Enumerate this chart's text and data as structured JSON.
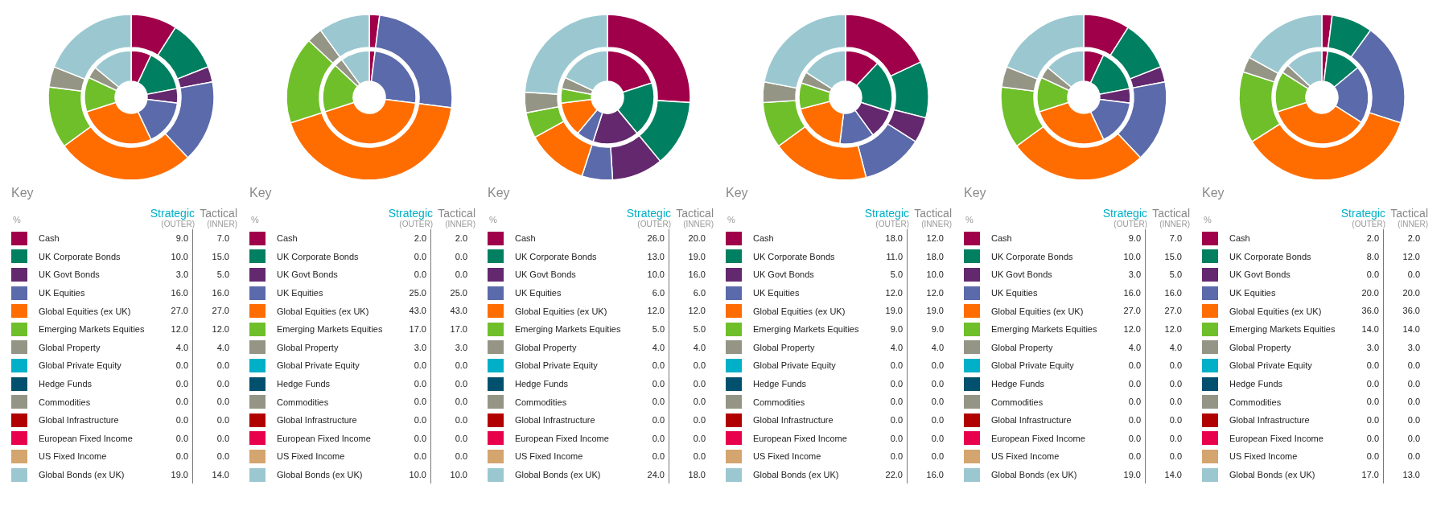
{
  "chart_data": [
    {
      "type": "donut",
      "legend": "bottom",
      "legend_title": "Key",
      "annotations": [
        "%",
        "(OUTER)",
        "(INNER)"
      ],
      "categories": [
        "Cash",
        "UK Corporate Bonds",
        "UK Govt Bonds",
        "UK Equities",
        "Global Equities (ex UK)",
        "Emerging Markets Equities",
        "Global Property",
        "Global Private Equity",
        "Hedge Funds",
        "Commodities",
        "Global Infrastructure",
        "European Fixed Income",
        "US Fixed Income",
        "Global Bonds (ex UK)"
      ],
      "colors": [
        "#a0004a",
        "#008060",
        "#63286e",
        "#5b6aaa",
        "#ff6d00",
        "#6fbf2a",
        "#949585",
        "#00b0c8",
        "#00506e",
        "#949585",
        "#b10000",
        "#e8004c",
        "#d4a56e",
        "#9bc8d0"
      ],
      "series": [
        {
          "name": "Strategic",
          "values": [
            9,
            10,
            3,
            16,
            27,
            12,
            4,
            0,
            0,
            0,
            0,
            0,
            0,
            19
          ],
          "value_labels": [
            "9.0",
            "10.0",
            "3.0",
            "16.0",
            "27.0",
            "12.0",
            "4.0",
            "0.0",
            "0.0",
            "0.0",
            "0.0",
            "0.0",
            "0.0",
            "19.0"
          ]
        },
        {
          "name": "Tactical",
          "values": [
            7,
            15,
            5,
            16,
            27,
            12,
            4,
            0,
            0,
            0,
            0,
            0,
            0,
            14
          ],
          "value_labels": [
            "7.0",
            "15.0",
            "5.0",
            "16.0",
            "27.0",
            "12.0",
            "4.0",
            "0.0",
            "0.0",
            "0.0",
            "0.0",
            "0.0",
            "0.0",
            "14.0"
          ]
        }
      ]
    },
    {
      "type": "donut",
      "legend": "bottom",
      "legend_title": "Key",
      "annotations": [
        "%",
        "(OUTER)",
        "(INNER)"
      ],
      "categories": [
        "Cash",
        "UK Corporate Bonds",
        "UK Govt Bonds",
        "UK Equities",
        "Global Equities (ex UK)",
        "Emerging Markets Equities",
        "Global Property",
        "Global Private Equity",
        "Hedge Funds",
        "Commodities",
        "Global Infrastructure",
        "European Fixed Income",
        "US Fixed Income",
        "Global Bonds (ex UK)"
      ],
      "colors": [
        "#a0004a",
        "#008060",
        "#63286e",
        "#5b6aaa",
        "#ff6d00",
        "#6fbf2a",
        "#949585",
        "#00b0c8",
        "#00506e",
        "#949585",
        "#b10000",
        "#e8004c",
        "#d4a56e",
        "#9bc8d0"
      ],
      "series": [
        {
          "name": "Strategic",
          "values": [
            2,
            0,
            0,
            25,
            43,
            17,
            3,
            0,
            0,
            0,
            0,
            0,
            0,
            10
          ],
          "value_labels": [
            "2.0",
            "0.0",
            "0.0",
            "25.0",
            "43.0",
            "17.0",
            "3.0",
            "0.0",
            "0.0",
            "0.0",
            "0.0",
            "0.0",
            "0.0",
            "10.0"
          ]
        },
        {
          "name": "Tactical",
          "values": [
            2,
            0,
            0,
            25,
            43,
            17,
            3,
            0,
            0,
            0,
            0,
            0,
            0,
            10
          ],
          "value_labels": [
            "2.0",
            "0.0",
            "0.0",
            "25.0",
            "43.0",
            "17.0",
            "3.0",
            "0.0",
            "0.0",
            "0.0",
            "0.0",
            "0.0",
            "0.0",
            "10.0"
          ]
        }
      ]
    },
    {
      "type": "donut",
      "legend": "bottom",
      "legend_title": "Key",
      "annotations": [
        "%",
        "(OUTER)",
        "(INNER)"
      ],
      "categories": [
        "Cash",
        "UK Corporate Bonds",
        "UK Govt Bonds",
        "UK Equities",
        "Global Equities (ex UK)",
        "Emerging Markets Equities",
        "Global Property",
        "Global Private Equity",
        "Hedge Funds",
        "Commodities",
        "Global Infrastructure",
        "European Fixed Income",
        "US Fixed Income",
        "Global Bonds (ex UK)"
      ],
      "colors": [
        "#a0004a",
        "#008060",
        "#63286e",
        "#5b6aaa",
        "#ff6d00",
        "#6fbf2a",
        "#949585",
        "#00b0c8",
        "#00506e",
        "#949585",
        "#b10000",
        "#e8004c",
        "#d4a56e",
        "#9bc8d0"
      ],
      "series": [
        {
          "name": "Strategic",
          "values": [
            26,
            13,
            10,
            6,
            12,
            5,
            4,
            0,
            0,
            0,
            0,
            0,
            0,
            24
          ],
          "value_labels": [
            "26.0",
            "13.0",
            "10.0",
            "6.0",
            "12.0",
            "5.0",
            "4.0",
            "0.0",
            "0.0",
            "0.0",
            "0.0",
            "0.0",
            "0.0",
            "24.0"
          ]
        },
        {
          "name": "Tactical",
          "values": [
            20,
            19,
            16,
            6,
            12,
            5,
            4,
            0,
            0,
            0,
            0,
            0,
            0,
            18
          ],
          "value_labels": [
            "20.0",
            "19.0",
            "16.0",
            "6.0",
            "12.0",
            "5.0",
            "4.0",
            "0.0",
            "0.0",
            "0.0",
            "0.0",
            "0.0",
            "0.0",
            "18.0"
          ]
        }
      ]
    },
    {
      "type": "donut",
      "legend": "bottom",
      "legend_title": "Key",
      "annotations": [
        "%",
        "(OUTER)",
        "(INNER)"
      ],
      "categories": [
        "Cash",
        "UK Corporate Bonds",
        "UK Govt Bonds",
        "UK Equities",
        "Global Equities (ex UK)",
        "Emerging Markets Equities",
        "Global Property",
        "Global Private Equity",
        "Hedge Funds",
        "Commodities",
        "Global Infrastructure",
        "European Fixed Income",
        "US Fixed Income",
        "Global Bonds (ex UK)"
      ],
      "colors": [
        "#a0004a",
        "#008060",
        "#63286e",
        "#5b6aaa",
        "#ff6d00",
        "#6fbf2a",
        "#949585",
        "#00b0c8",
        "#00506e",
        "#949585",
        "#b10000",
        "#e8004c",
        "#d4a56e",
        "#9bc8d0"
      ],
      "series": [
        {
          "name": "Strategic",
          "values": [
            18,
            11,
            5,
            12,
            19,
            9,
            4,
            0,
            0,
            0,
            0,
            0,
            0,
            22
          ],
          "value_labels": [
            "18.0",
            "11.0",
            "5.0",
            "12.0",
            "19.0",
            "9.0",
            "4.0",
            "0.0",
            "0.0",
            "0.0",
            "0.0",
            "0.0",
            "0.0",
            "22.0"
          ]
        },
        {
          "name": "Tactical",
          "values": [
            12,
            18,
            10,
            12,
            19,
            9,
            4,
            0,
            0,
            0,
            0,
            0,
            0,
            16
          ],
          "value_labels": [
            "12.0",
            "18.0",
            "10.0",
            "12.0",
            "19.0",
            "9.0",
            "4.0",
            "0.0",
            "0.0",
            "0.0",
            "0.0",
            "0.0",
            "0.0",
            "16.0"
          ]
        }
      ]
    },
    {
      "type": "donut",
      "legend": "bottom",
      "legend_title": "Key",
      "annotations": [
        "%",
        "(OUTER)",
        "(INNER)"
      ],
      "categories": [
        "Cash",
        "UK Corporate Bonds",
        "UK Govt Bonds",
        "UK Equities",
        "Global Equities (ex UK)",
        "Emerging Markets Equities",
        "Global Property",
        "Global Private Equity",
        "Hedge Funds",
        "Commodities",
        "Global Infrastructure",
        "European Fixed Income",
        "US Fixed Income",
        "Global Bonds (ex UK)"
      ],
      "colors": [
        "#a0004a",
        "#008060",
        "#63286e",
        "#5b6aaa",
        "#ff6d00",
        "#6fbf2a",
        "#949585",
        "#00b0c8",
        "#00506e",
        "#949585",
        "#b10000",
        "#e8004c",
        "#d4a56e",
        "#9bc8d0"
      ],
      "series": [
        {
          "name": "Strategic",
          "values": [
            9,
            10,
            3,
            16,
            27,
            12,
            4,
            0,
            0,
            0,
            0,
            0,
            0,
            19
          ],
          "value_labels": [
            "9.0",
            "10.0",
            "3.0",
            "16.0",
            "27.0",
            "12.0",
            "4.0",
            "0.0",
            "0.0",
            "0.0",
            "0.0",
            "0.0",
            "0.0",
            "19.0"
          ]
        },
        {
          "name": "Tactical",
          "values": [
            7,
            15,
            5,
            16,
            27,
            12,
            4,
            0,
            0,
            0,
            0,
            0,
            0,
            14
          ],
          "value_labels": [
            "7.0",
            "15.0",
            "5.0",
            "16.0",
            "27.0",
            "12.0",
            "4.0",
            "0.0",
            "0.0",
            "0.0",
            "0.0",
            "0.0",
            "0.0",
            "14.0"
          ]
        }
      ]
    },
    {
      "type": "donut",
      "legend": "bottom",
      "legend_title": "Key",
      "annotations": [
        "%",
        "(OUTER)",
        "(INNER)"
      ],
      "categories": [
        "Cash",
        "UK Corporate Bonds",
        "UK Govt Bonds",
        "UK Equities",
        "Global Equities (ex UK)",
        "Emerging Markets Equities",
        "Global Property",
        "Global Private Equity",
        "Hedge Funds",
        "Commodities",
        "Global Infrastructure",
        "European Fixed Income",
        "US Fixed Income",
        "Global Bonds (ex UK)"
      ],
      "colors": [
        "#a0004a",
        "#008060",
        "#63286e",
        "#5b6aaa",
        "#ff6d00",
        "#6fbf2a",
        "#949585",
        "#00b0c8",
        "#00506e",
        "#949585",
        "#b10000",
        "#e8004c",
        "#d4a56e",
        "#9bc8d0"
      ],
      "series": [
        {
          "name": "Strategic",
          "values": [
            2,
            8,
            0,
            20,
            36,
            14,
            3,
            0,
            0,
            0,
            0,
            0,
            0,
            17
          ],
          "value_labels": [
            "2.0",
            "8.0",
            "0.0",
            "20.0",
            "36.0",
            "14.0",
            "3.0",
            "0.0",
            "0.0",
            "0.0",
            "0.0",
            "0.0",
            "0.0",
            "17.0"
          ]
        },
        {
          "name": "Tactical",
          "values": [
            2,
            12,
            0,
            20,
            36,
            14,
            3,
            0,
            0,
            0,
            0,
            0,
            0,
            13
          ],
          "value_labels": [
            "2.0",
            "12.0",
            "0.0",
            "20.0",
            "36.0",
            "14.0",
            "3.0",
            "0.0",
            "0.0",
            "0.0",
            "0.0",
            "0.0",
            "0.0",
            "13.0"
          ]
        }
      ]
    }
  ]
}
